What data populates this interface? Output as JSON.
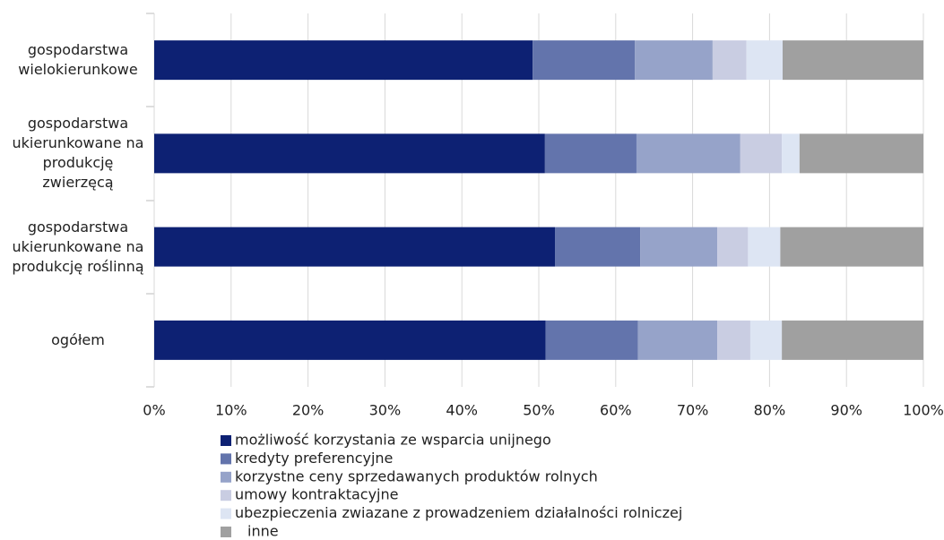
{
  "chart_data": {
    "type": "stacked-barh",
    "categories": [
      "gospodarstwa wielokierunkowe",
      "gospodarstwa ukierunkowane na produkcję zwierzęcą",
      "gospodarstwa ukierunkowane na produkcję roślinną",
      "ogółem"
    ],
    "series": [
      {
        "name": "możliwość korzystania ze wsparcia unijnego",
        "color": "#0d2173",
        "values": [
          49.2,
          50.8,
          52.1,
          50.9
        ]
      },
      {
        "name": "kredyty preferencyjne",
        "color": "#6374ac",
        "values": [
          13.3,
          11.9,
          11.1,
          12.0
        ]
      },
      {
        "name": "korzystne ceny sprzedawanych produktów rolnych",
        "color": "#96a3c9",
        "values": [
          10.1,
          13.5,
          10.0,
          10.3
        ]
      },
      {
        "name": "umowy kontraktacyjne",
        "color": "#c9cde2",
        "values": [
          4.4,
          5.4,
          4.0,
          4.3
        ]
      },
      {
        "name": "ubezpieczenia zwiazane z prowadzeniem działalności rolniczej",
        "color": "#dde5f3",
        "values": [
          4.7,
          2.3,
          4.2,
          4.1
        ]
      },
      {
        "name": "inne",
        "color": "#a0a0a0",
        "values": [
          18.3,
          16.1,
          18.6,
          18.4
        ]
      }
    ],
    "xlim": [
      0,
      100
    ],
    "xticks": [
      {
        "value": 0,
        "label": "0%"
      },
      {
        "value": 10,
        "label": "10%"
      },
      {
        "value": 20,
        "label": "20%"
      },
      {
        "value": 30,
        "label": "30%"
      },
      {
        "value": 40,
        "label": "40%"
      },
      {
        "value": 50,
        "label": "50%"
      },
      {
        "value": 60,
        "label": "60%"
      },
      {
        "value": 70,
        "label": "70%"
      },
      {
        "value": 80,
        "label": "80%"
      },
      {
        "value": 90,
        "label": "90%"
      },
      {
        "value": 100,
        "label": "100%"
      }
    ],
    "grid": true,
    "legend": "bottom"
  }
}
